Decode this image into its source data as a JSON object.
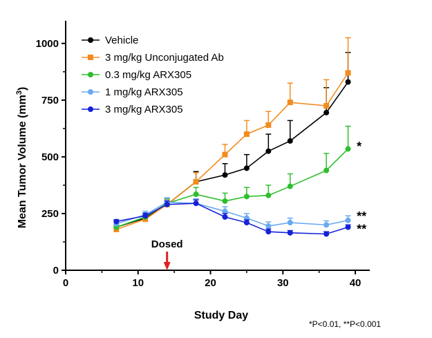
{
  "chart_data": {
    "type": "line",
    "title": "",
    "xlabel": "Study Day",
    "ylabel": "Mean Tumor Volume (mm³)",
    "ylabel_main": "Mean Tumor Volume (mm",
    "ylabel_sup": "3",
    "ylabel_close": ")",
    "xlim": [
      0,
      42
    ],
    "ylim": [
      0,
      1100
    ],
    "xticks": [
      0,
      10,
      20,
      30,
      40
    ],
    "yticks": [
      0,
      250,
      500,
      750,
      1000
    ],
    "legend_position": "top-left",
    "series": [
      {
        "name": "Vehicle",
        "color": "#000000",
        "marker": "circle",
        "x": [
          7,
          11,
          14,
          18,
          22,
          25,
          28,
          31,
          36,
          39
        ],
        "y": [
          190,
          230,
          290,
          390,
          420,
          450,
          525,
          570,
          695,
          830
        ],
        "err": [
          10,
          15,
          20,
          45,
          50,
          60,
          75,
          90,
          110,
          130
        ]
      },
      {
        "name": "3 mg/kg Unconjugated Ab",
        "color": "#f28c1e",
        "marker": "square",
        "x": [
          7,
          11,
          14,
          18,
          22,
          25,
          28,
          31,
          36,
          39
        ],
        "y": [
          180,
          225,
          290,
          390,
          510,
          600,
          640,
          740,
          725,
          870
        ],
        "err": [
          10,
          15,
          20,
          40,
          45,
          60,
          60,
          85,
          115,
          155
        ]
      },
      {
        "name": "0.3 mg/kg ARX305",
        "color": "#2dbf2d",
        "marker": "circle",
        "x": [
          7,
          11,
          14,
          18,
          22,
          25,
          28,
          31,
          36,
          39
        ],
        "y": [
          190,
          235,
          295,
          335,
          305,
          325,
          330,
          370,
          440,
          535
        ],
        "err": [
          10,
          15,
          20,
          30,
          35,
          40,
          45,
          55,
          75,
          100
        ]
      },
      {
        "name": "1 mg/kg ARX305",
        "color": "#6aaaf0",
        "marker": "circle",
        "x": [
          7,
          11,
          14,
          18,
          22,
          25,
          28,
          31,
          36,
          39
        ],
        "y": [
          205,
          245,
          300,
          295,
          260,
          230,
          195,
          210,
          200,
          220
        ],
        "err": [
          10,
          15,
          20,
          20,
          20,
          20,
          18,
          20,
          18,
          20
        ]
      },
      {
        "name": "3 mg/kg ARX305",
        "color": "#1522d6",
        "marker": "circle",
        "x": [
          7,
          11,
          14,
          18,
          22,
          25,
          28,
          31,
          36,
          39
        ],
        "y": [
          215,
          240,
          290,
          295,
          235,
          210,
          170,
          165,
          160,
          190
        ],
        "err": [
          8,
          12,
          15,
          15,
          15,
          12,
          12,
          10,
          10,
          10
        ]
      }
    ],
    "annotations": [
      {
        "text": "*",
        "x": 40.2,
        "y": 545
      },
      {
        "text": "**",
        "x": 40.2,
        "y": 237
      },
      {
        "text": "**",
        "x": 40.2,
        "y": 182
      }
    ],
    "dosed": {
      "label": "Dosed",
      "x": 14
    },
    "footnote": "*P<0.01,  **P<0.001"
  }
}
